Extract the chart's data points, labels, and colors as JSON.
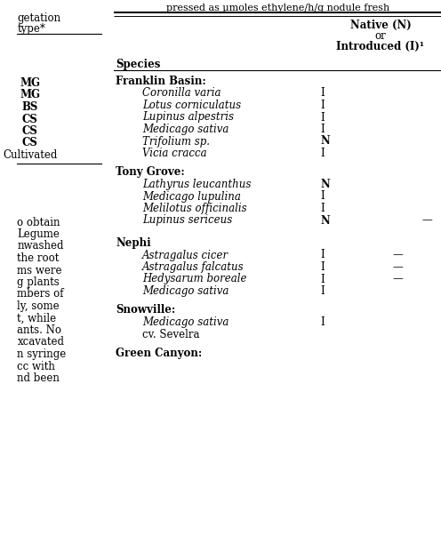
{
  "title_top": "pressed as μmoles ethylene/h/g nodule fresh",
  "col1_header": "Species",
  "col2_header_line1": "Native (N)",
  "col2_header_line2": "or",
  "col2_header_line3": "Introduced (I)¹",
  "left_col_labels": [
    "getation",
    "type*"
  ],
  "left_labels": [
    {
      "text": "MG",
      "bold": true
    },
    {
      "text": "MG",
      "bold": true
    },
    {
      "text": "BS",
      "bold": true
    },
    {
      "text": "CS",
      "bold": true
    },
    {
      "text": "CS",
      "bold": true
    },
    {
      "text": "CS",
      "bold": true
    },
    {
      "text": "Cultivated",
      "bold": false
    }
  ],
  "left_body_labels": [
    {
      "text": "o obtain",
      "bold": false
    },
    {
      "text": "Legume",
      "bold": false
    },
    {
      "text": "nwashed",
      "bold": false
    },
    {
      "text": "the root",
      "bold": false
    },
    {
      "text": "ms were",
      "bold": false
    },
    {
      "text": "g plants",
      "bold": false
    },
    {
      "text": "mbers of",
      "bold": false
    },
    {
      "text": "ly, some",
      "bold": false
    },
    {
      "text": "t, while",
      "bold": false
    },
    {
      "text": "ants. No",
      "bold": false
    },
    {
      "text": "xcavated",
      "bold": false
    },
    {
      "text": "n syringe",
      "bold": false
    },
    {
      "text": "cc with",
      "bold": false
    },
    {
      "text": "nd been",
      "bold": false
    }
  ],
  "sections": [
    {
      "location": "Franklin Basin:",
      "bold_location": true,
      "species": [
        {
          "name": "Coronilla varia",
          "italic": true,
          "ni": "I",
          "ni_bold": false,
          "dash": false
        },
        {
          "name": "Lotus corniculatus",
          "italic": true,
          "ni": "I",
          "ni_bold": false,
          "dash": false
        },
        {
          "name": "Lupinus alpestris",
          "italic": true,
          "ni": "I",
          "ni_bold": false,
          "dash": false
        },
        {
          "name": "Medicago sativa",
          "italic": true,
          "ni": "I",
          "ni_bold": false,
          "dash": false
        },
        {
          "name": "Trifolium sp.",
          "italic": true,
          "ni": "N",
          "ni_bold": true,
          "dash": false
        },
        {
          "name": "Vicia cracca",
          "italic": true,
          "ni": "I",
          "ni_bold": false,
          "dash": false
        }
      ]
    },
    {
      "location": "Tony Grove:",
      "bold_location": true,
      "species": [
        {
          "name": "Lathyrus leucanthus",
          "italic": true,
          "ni": "N",
          "ni_bold": true,
          "dash": false
        },
        {
          "name": "Medicago lupulina",
          "italic": true,
          "ni": "I",
          "ni_bold": false,
          "dash": false
        },
        {
          "name": "Melilotus officinalis",
          "italic": true,
          "ni": "I",
          "ni_bold": false,
          "dash": false
        },
        {
          "name": "Lupinus sericeus",
          "italic": true,
          "ni": "N",
          "ni_bold": true,
          "dash": true,
          "dash_partial": true
        }
      ]
    },
    {
      "location": "Nephi",
      "bold_location": true,
      "species": [
        {
          "name": "Astragalus cicer",
          "italic": true,
          "ni": "I",
          "ni_bold": false,
          "dash": true
        },
        {
          "name": "Astragalus falcatus",
          "italic": true,
          "ni": "I",
          "ni_bold": false,
          "dash": true
        },
        {
          "name": "Hedysarum boreale",
          "italic": true,
          "ni": "I",
          "ni_bold": false,
          "dash": true
        },
        {
          "name": "Medicago sativa",
          "italic": true,
          "ni": "I",
          "ni_bold": false,
          "dash": false
        }
      ]
    },
    {
      "location": "Snowville:",
      "bold_location": true,
      "species": [
        {
          "name": "Medicago sativa",
          "italic": true,
          "ni": "I",
          "ni_bold": false,
          "dash": false
        },
        {
          "name": "cv. Sevelra",
          "italic": false,
          "ni": "",
          "ni_bold": false,
          "dash": false
        }
      ]
    },
    {
      "location": "Green Canyon:",
      "bold_location": true,
      "species": []
    }
  ],
  "bg_color": "#ffffff",
  "text_color": "#000000",
  "font_size": 8.5
}
